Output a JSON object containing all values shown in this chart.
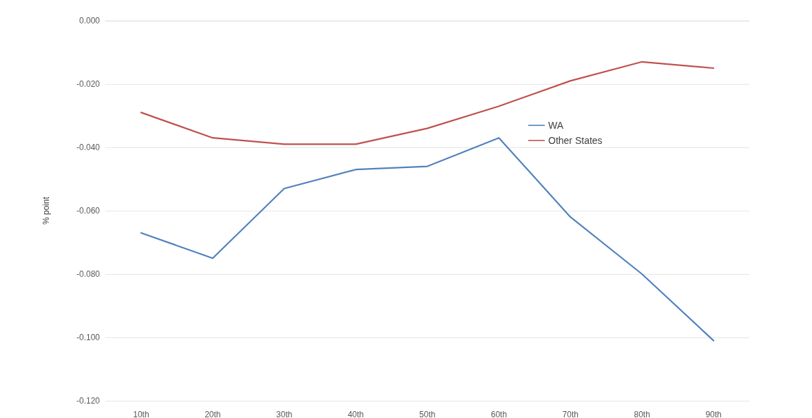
{
  "chart_data": {
    "type": "line",
    "ylabel": "% point",
    "categories": [
      "10th",
      "20th",
      "30th",
      "40th",
      "50th",
      "60th",
      "70th",
      "80th",
      "90th"
    ],
    "series": [
      {
        "name": "WA",
        "color": "#4f81bd",
        "values": [
          -0.067,
          -0.075,
          -0.053,
          -0.047,
          -0.046,
          -0.037,
          -0.062,
          -0.08,
          -0.101
        ]
      },
      {
        "name": "Other States",
        "color": "#c0504d",
        "values": [
          -0.029,
          -0.037,
          -0.039,
          -0.039,
          -0.034,
          -0.027,
          -0.019,
          -0.013,
          -0.015
        ]
      }
    ],
    "ylim": [
      -0.12,
      0
    ],
    "yticks": [
      {
        "value": -0.12,
        "label": "-0.120"
      },
      {
        "value": -0.1,
        "label": "-0.100"
      },
      {
        "value": -0.08,
        "label": "-0.080"
      },
      {
        "value": -0.06,
        "label": "-0.060"
      },
      {
        "value": -0.04,
        "label": "-0.040"
      },
      {
        "value": -0.02,
        "label": "-0.020"
      },
      {
        "value": 0,
        "label": "0.000"
      }
    ],
    "grid": "y",
    "legend": "right",
    "marker": "none",
    "line_style": "solid"
  }
}
